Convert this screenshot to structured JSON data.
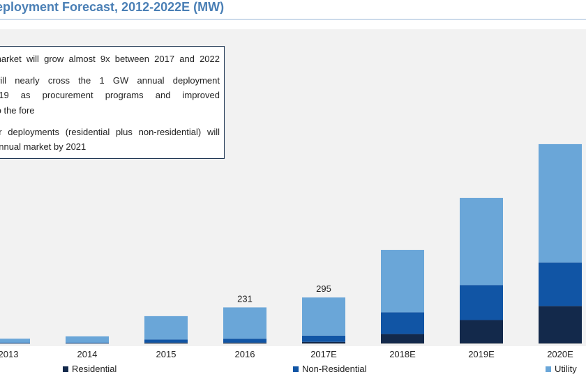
{
  "header": {
    "title": "eployment Forecast, 2012-2022E (MW)"
  },
  "callout": {
    "lines": [
      "market will grow almost 9x between 2017 and 2022",
      "will nearly cross the 1 GW annual deployment",
      "019 as procurement programs and improved",
      "to the fore",
      "er deployments (residential plus non-residential) will",
      "annual market by 2021"
    ]
  },
  "colors": {
    "residential": "#13294b",
    "non_residential": "#1155a5",
    "utility": "#6aa6d8",
    "title": "#4a7fb5",
    "plot_background": "#f2f2f2"
  },
  "chart_data": {
    "type": "bar",
    "stacked": true,
    "categories": [
      "2013",
      "2014",
      "2015",
      "2016",
      "2017E",
      "2018E",
      "2019E",
      "2020E"
    ],
    "series": [
      {
        "name": "Residential",
        "values": [
          0,
          0,
          5,
          5,
          10,
          60,
          150,
          240
        ]
      },
      {
        "name": "Non-Residential",
        "values": [
          5,
          5,
          20,
          25,
          40,
          140,
          225,
          280
        ]
      },
      {
        "name": "Utility",
        "values": [
          25,
          40,
          150,
          201,
          245,
          400,
          560,
          760
        ]
      }
    ],
    "data_labels": {
      "2016": "231",
      "2017E": "295"
    },
    "ylim": [
      0,
      1400
    ],
    "grid": false,
    "legend_position": "bottom"
  }
}
